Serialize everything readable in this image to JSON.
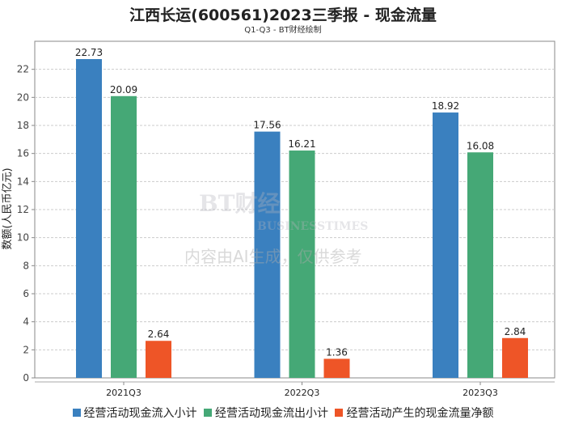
{
  "chart_data": {
    "type": "bar",
    "title": "江西长运(600561)2023三季报 - 现金流量",
    "subtitle": "Q1-Q3 - BT财经绘制",
    "xlabel": "",
    "ylabel": "数额(人民币亿元)",
    "ylim": [
      0,
      24
    ],
    "yticks": [
      0,
      2,
      4,
      6,
      8,
      10,
      12,
      14,
      16,
      18,
      20,
      22
    ],
    "grid": true,
    "legend_position": "bottom",
    "categories": [
      "2021Q3",
      "2022Q3",
      "2023Q3"
    ],
    "series": [
      {
        "name": "经营活动现金流入小计",
        "color": "#3a80bf",
        "values": [
          22.73,
          17.56,
          18.92
        ],
        "labels": [
          "22.73",
          "17.56",
          "18.92"
        ]
      },
      {
        "name": "经营活动现金流出小计",
        "color": "#45a876",
        "values": [
          20.09,
          16.21,
          16.08
        ],
        "labels": [
          "20.09",
          "16.21",
          "16.08"
        ]
      },
      {
        "name": "经营活动产生的现金流量净额",
        "color": "#ee5527",
        "values": [
          2.64,
          1.36,
          2.84
        ],
        "labels": [
          "2.64",
          "1.36",
          "2.84"
        ]
      }
    ]
  },
  "watermark": {
    "logo": "BT财经",
    "logo_sub": "BUSINESSTIMES",
    "notice": "内容由AI生成，仅供参考"
  }
}
